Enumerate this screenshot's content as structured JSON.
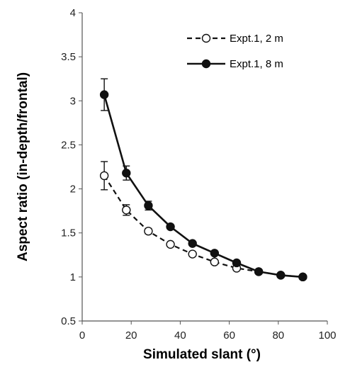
{
  "chart_data": {
    "type": "line",
    "xlabel": "Simulated slant (°)",
    "ylabel": "Aspect ratio (in-depth/frontal)",
    "xlim": [
      0,
      100
    ],
    "ylim": [
      0.5,
      4
    ],
    "xticks": [
      "0",
      "20",
      "40",
      "60",
      "80",
      "100"
    ],
    "yticks": [
      "0.5",
      "1",
      "1.5",
      "2",
      "2.5",
      "3",
      "3.5",
      "4"
    ],
    "grid": false,
    "legend": "top-right",
    "series": [
      {
        "name": "Expt.1, 2 m",
        "style": "dashed",
        "marker": "open-circle",
        "x": [
          9,
          18,
          27,
          36,
          45,
          54,
          63,
          72,
          81,
          90
        ],
        "y": [
          2.15,
          1.76,
          1.52,
          1.37,
          1.26,
          1.17,
          1.1,
          1.06,
          1.02,
          1.0
        ],
        "error": [
          0.16,
          0.06,
          0.03,
          0.02,
          0.02,
          0.02,
          0.02,
          0.01,
          0.01,
          0.01
        ]
      },
      {
        "name": "Expt.1, 8 m",
        "style": "solid",
        "marker": "filled-circle",
        "x": [
          9,
          18,
          27,
          36,
          45,
          54,
          63,
          72,
          81,
          90
        ],
        "y": [
          3.07,
          2.18,
          1.81,
          1.57,
          1.38,
          1.27,
          1.16,
          1.06,
          1.02,
          1.0
        ],
        "error": [
          0.18,
          0.08,
          0.05,
          0.02,
          0.02,
          0.02,
          0.02,
          0.01,
          0.01,
          0.01
        ]
      }
    ]
  }
}
